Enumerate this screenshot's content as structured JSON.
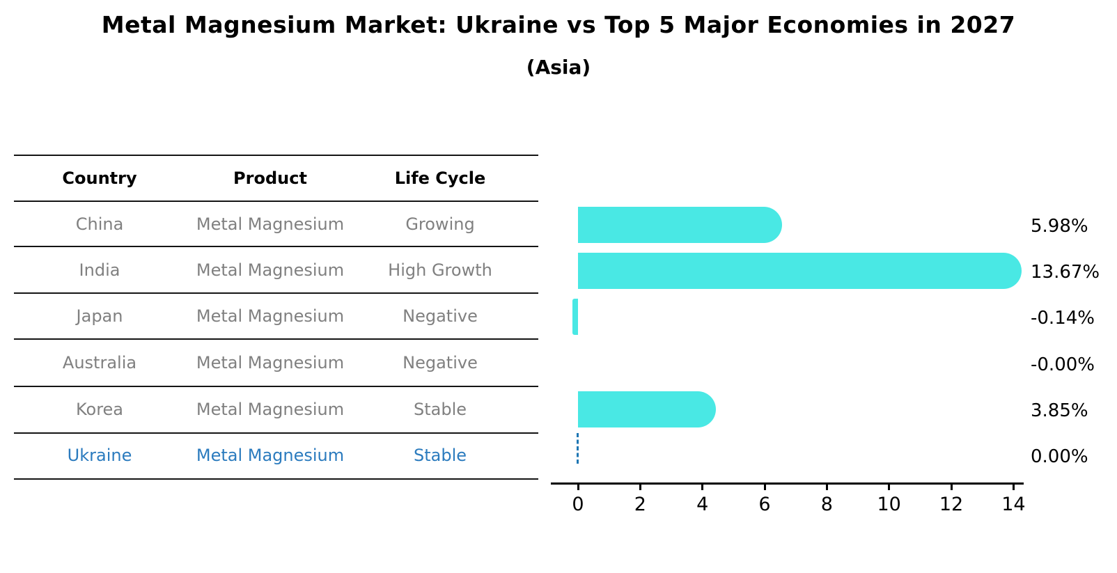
{
  "title": "Metal Magnesium Market: Ukraine vs Top 5 Major Economies in 2027",
  "subtitle": "(Asia)",
  "table": {
    "headers": [
      "Country",
      "Product",
      "Life Cycle"
    ],
    "rows": [
      {
        "country": "China",
        "product": "Metal Magnesium",
        "life_cycle": "Growing"
      },
      {
        "country": "India",
        "product": "Metal Magnesium",
        "life_cycle": "High Growth"
      },
      {
        "country": "Japan",
        "product": "Metal Magnesium",
        "life_cycle": "Negative"
      },
      {
        "country": "Australia",
        "product": "Metal Magnesium",
        "life_cycle": "Negative"
      },
      {
        "country": "Korea",
        "product": "Metal Magnesium",
        "life_cycle": "Stable"
      },
      {
        "country": "Ukraine",
        "product": "Metal Magnesium",
        "life_cycle": "Stable"
      }
    ],
    "highlighted_row": "Ukraine"
  },
  "chart_data": {
    "type": "bar",
    "orientation": "horizontal",
    "categories": [
      "China",
      "India",
      "Japan",
      "Australia",
      "Korea",
      "Ukraine"
    ],
    "values": [
      5.98,
      13.67,
      -0.14,
      -0.0,
      3.85,
      0.0
    ],
    "value_labels": [
      "5.98%",
      "13.67%",
      "-0.14%",
      "-0.00%",
      "3.85%",
      "0.00%"
    ],
    "bar_styles": [
      "solid",
      "solid",
      "solid",
      "none",
      "solid",
      "dashed-zero-line"
    ],
    "xticks": [
      "0",
      "2",
      "4",
      "6",
      "8",
      "10",
      "12",
      "14"
    ],
    "xlim": [
      -0.9,
      14.35
    ],
    "xlabel": "",
    "ylabel": "",
    "grid": false,
    "legend": "none",
    "bar_color": "#49E8E4",
    "zero_line_color": "#1F77B4",
    "highlight_color": "#2B7BBE",
    "muted_text_color": "#808080"
  }
}
